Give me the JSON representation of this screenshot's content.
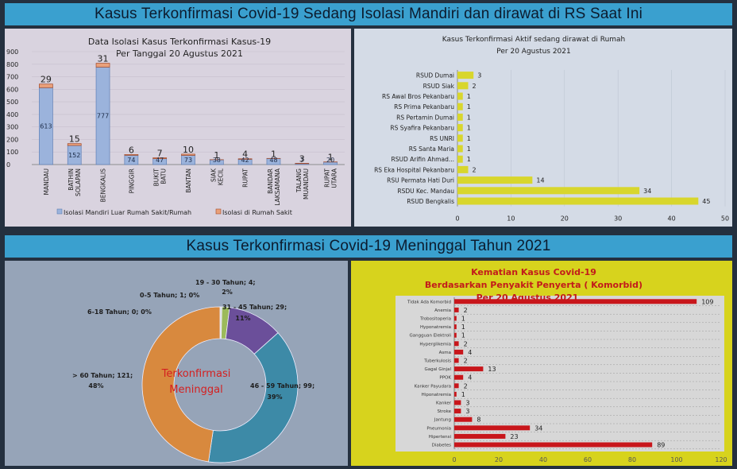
{
  "banner_top": "Kasus Terkonfirmasi Covid-19 Sedang Isolasi Mandiri dan dirawat di RS Saat Ini",
  "banner_bottom": "Kasus Terkonfirmasi Covid-19 Meninggal Tahun 2021",
  "colors": {
    "banner": "#3aa0cf",
    "isoman_bar": "#9bb3dc",
    "rs_bar": "#e9a07a",
    "yellow_bar": "#d8d62c",
    "red_bar": "#c8161b",
    "komorbid_bg": "#d7d31d",
    "donut_orange": "#d8893e",
    "donut_teal": "#3d8aa7",
    "donut_purple": "#6b4f9a",
    "donut_green": "#9cba5b"
  },
  "chart_data": [
    {
      "type": "bar",
      "title": "Data Isolasi Kasus Terkonfirmasi Kasus-19",
      "subtitle": "Per Tanggal 20 Agustus 2021",
      "categories": [
        "MANDAU",
        "BATHIN SOLAPAN",
        "BENGKALIS",
        "PINGGIR",
        "BUKIT BATU",
        "BANTAN",
        "SIAK KECIL",
        "RUPAT",
        "BANDAR LAKSAMANA",
        "TALANG MUANDAU",
        "RUPAT UTARA"
      ],
      "series": [
        {
          "name": "Isolasi Mandiri Luar Rumah Sakit/Rumah",
          "values": [
            613,
            152,
            777,
            74,
            47,
            73,
            38,
            42,
            48,
            7,
            20
          ]
        },
        {
          "name": "Isolasi di Rumah Sakit",
          "values": [
            29,
            15,
            31,
            6,
            7,
            10,
            1,
            4,
            1,
            3,
            1
          ]
        }
      ],
      "value_labels_isoman": [
        "613",
        "152",
        "777",
        "74",
        "47",
        "73",
        "38",
        "42",
        "48",
        "7",
        "20"
      ],
      "value_labels_rs": [
        "29",
        "15",
        "31",
        "6",
        "7",
        "10",
        "1",
        "4",
        "1",
        "3",
        "1"
      ],
      "yticks": [
        "0",
        "100",
        "200",
        "300",
        "400",
        "500",
        "600",
        "700",
        "800",
        "900"
      ],
      "ylim": [
        0,
        900
      ],
      "stacked": true,
      "legend_position": "bottom"
    },
    {
      "type": "bar",
      "orientation": "horizontal",
      "title": "Kasus Terkonfirmasi Aktif sedang dirawat di Rumah",
      "subtitle": "Per 20 Agustus 2021",
      "categories": [
        "RSUD Dumai",
        "RSUD Siak",
        "RS Awal Bros Pekanbaru",
        "RS Prima Pekanbaru",
        "RS Pertamin Dumai",
        "RS Syafira Pekanbaru",
        "RS UNRI",
        "RS Santa Maria",
        "RSUD Arifin Ahmad...",
        "RS Eka Hospital Pekanbaru",
        "RSU Permata Hati Duri",
        "RSDU Kec. Mandau",
        "RSUD Bengkalis"
      ],
      "values": [
        3,
        2,
        1,
        1,
        1,
        1,
        1,
        1,
        1,
        2,
        14,
        34,
        45
      ],
      "value_labels": [
        "3",
        "2",
        "1",
        "1",
        "1",
        "1",
        "1",
        "1",
        "1",
        "2",
        "14",
        "34",
        "45"
      ],
      "xticks": [
        "0",
        "10",
        "20",
        "30",
        "40",
        "50"
      ],
      "xlim": [
        0,
        50
      ]
    },
    {
      "type": "pie",
      "donut": true,
      "center_label": [
        "Terkonfirmasi",
        "Meninggal"
      ],
      "slices": [
        {
          "name": "0-5 Tahun",
          "value": 1,
          "label": "0-5 Tahun; 1; 0%"
        },
        {
          "name": "6-18 Tahun",
          "value": 0,
          "label": "6-18 Tahun; 0; 0%"
        },
        {
          "name": "19 - 30 Tahun",
          "value": 4,
          "label": "19 - 30 Tahun; 4;",
          "label2": "2%"
        },
        {
          "name": "31 - 45 Tahun",
          "value": 29,
          "label": "31 - 45 Tahun; 29;",
          "label2": "11%"
        },
        {
          "name": "46 - 59 Tahun",
          "value": 99,
          "label": "46 - 59 Tahun; 99;",
          "label2": "39%"
        },
        {
          "name": "> 60 Tahun",
          "value": 121,
          "label": "> 60 Tahun; 121;",
          "label2": "48%"
        }
      ]
    },
    {
      "type": "bar",
      "orientation": "horizontal",
      "title": "Kematian Kasus Covid-19",
      "subtitle": "Berdasarkan  Penyakit Penyerta ( Komorbid)",
      "subtitle2": "Per 20 Agustus 2021",
      "categories": [
        "Tidak Ada Komorbid",
        "Anemia",
        "Trobositoperia",
        "Hyponatremia",
        "Gangguan Elektroli",
        "Hyperglikemia",
        "Asma",
        "Tuberkulosis",
        "Gagal Ginjal",
        "PPOK",
        "Kanker Payudara",
        "Hiponatremia",
        "Kanker",
        "Stroke",
        "Jantung",
        "Pneumonia",
        "Hipertensi",
        "Diabetes"
      ],
      "values": [
        109,
        2,
        1,
        1,
        1,
        2,
        4,
        2,
        13,
        4,
        2,
        1,
        3,
        3,
        8,
        34,
        23,
        89
      ],
      "value_labels": [
        "109",
        "2",
        "1",
        "1",
        "1",
        "2",
        "4",
        "2",
        "13",
        "4",
        "2",
        "1",
        "3",
        "3",
        "8",
        "34",
        "23",
        "89"
      ],
      "xticks": [
        "0",
        "20",
        "40",
        "60",
        "80",
        "100",
        "120"
      ],
      "xlim": [
        0,
        120
      ]
    }
  ]
}
